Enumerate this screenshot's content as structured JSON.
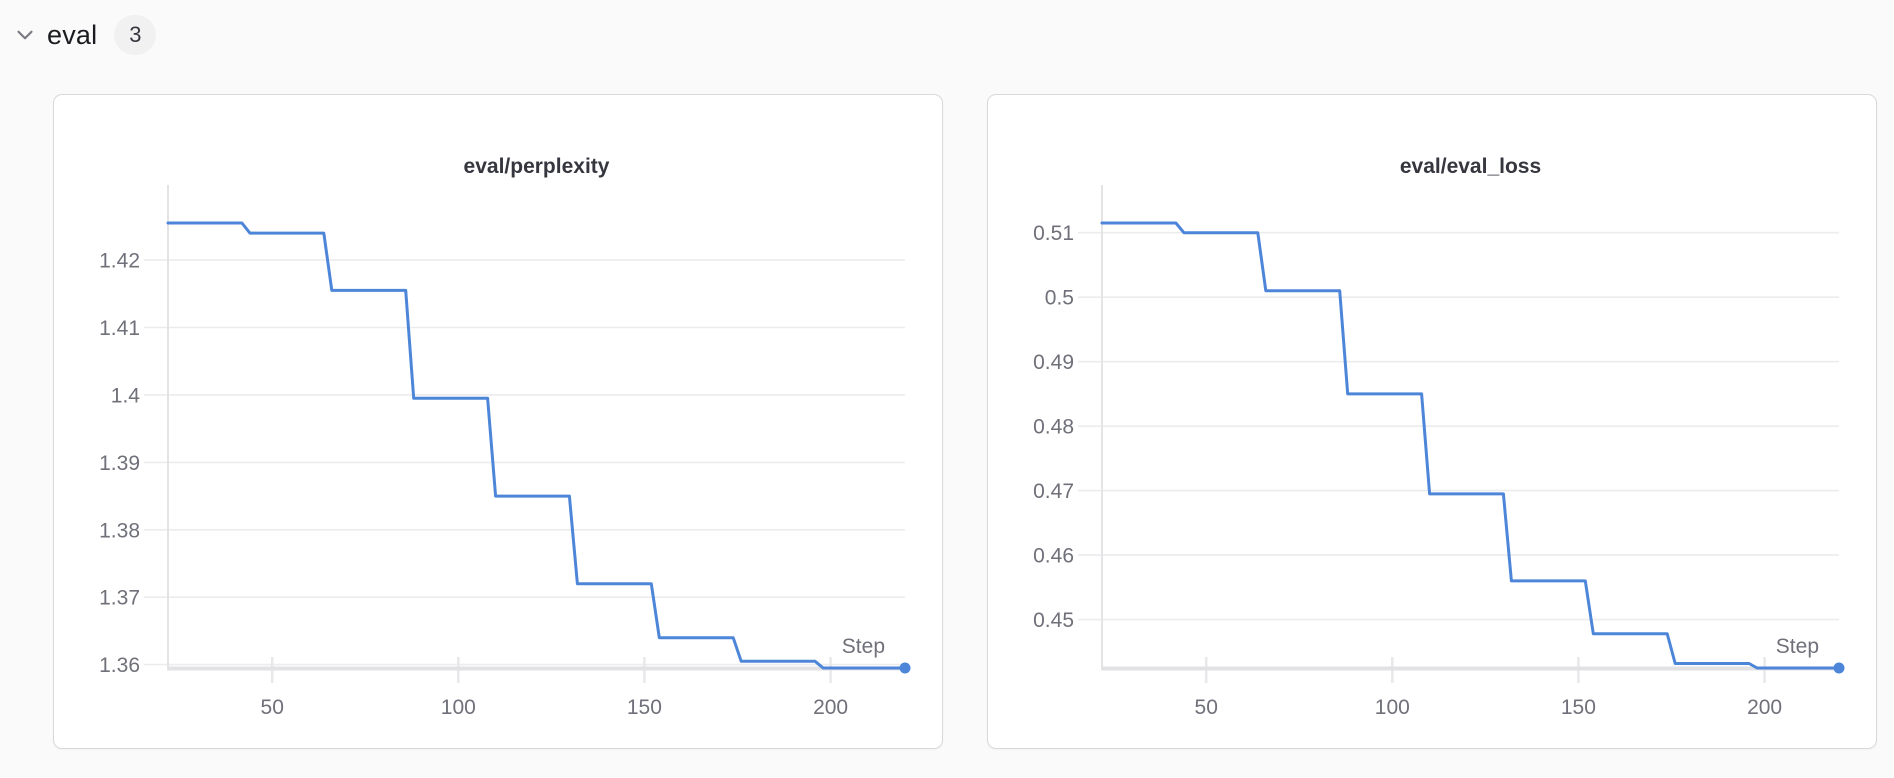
{
  "section": {
    "chevron_icon": "chevron-down",
    "label": "eval",
    "count": "3"
  },
  "colors": {
    "page_bg": "#fafafa",
    "card_bg": "#ffffff",
    "card_border": "#d9d9dc",
    "line": "#4d86d8",
    "grid": "#ececee",
    "axis_band": "#e2e2e5",
    "axis_line": "#e4e4e7",
    "tick_stub": "#e8e8eb",
    "tick_label": "#6f7079",
    "title_text": "#35363e"
  },
  "chart_data": [
    {
      "type": "line",
      "title": "eval/perplexity",
      "xlabel": "Step",
      "legend_position": "none",
      "grid": true,
      "x": [
        22,
        44,
        66,
        88,
        110,
        132,
        154,
        176,
        198,
        220
      ],
      "y": [
        1.4255,
        1.424,
        1.4155,
        1.3995,
        1.385,
        1.372,
        1.364,
        1.3605,
        1.3595,
        1.3595
      ],
      "xlim": [
        22,
        220
      ],
      "ylim": [
        1.3595,
        1.4255
      ],
      "xticks": [
        50,
        100,
        150,
        200
      ],
      "xtick_labels": [
        "50",
        "100",
        "150",
        "200"
      ],
      "yticks": [
        1.36,
        1.37,
        1.38,
        1.39,
        1.4,
        1.41,
        1.42
      ],
      "ytick_labels": [
        "1.36",
        "1.37",
        "1.38",
        "1.39",
        "1.4",
        "1.41",
        "1.42"
      ],
      "end_marker": true
    },
    {
      "type": "line",
      "title": "eval/eval_loss",
      "xlabel": "Step",
      "legend_position": "none",
      "grid": true,
      "x": [
        22,
        44,
        66,
        88,
        110,
        132,
        154,
        176,
        198,
        220
      ],
      "y": [
        0.5115,
        0.51,
        0.501,
        0.485,
        0.4695,
        0.456,
        0.4478,
        0.4432,
        0.4425,
        0.4425
      ],
      "xlim": [
        22,
        220
      ],
      "ylim": [
        0.4425,
        0.5115
      ],
      "xticks": [
        50,
        100,
        150,
        200
      ],
      "xtick_labels": [
        "50",
        "100",
        "150",
        "200"
      ],
      "yticks": [
        0.45,
        0.46,
        0.47,
        0.48,
        0.49,
        0.5,
        0.51
      ],
      "ytick_labels": [
        "0.45",
        "0.46",
        "0.47",
        "0.48",
        "0.49",
        "0.5",
        "0.51"
      ],
      "end_marker": true
    }
  ]
}
